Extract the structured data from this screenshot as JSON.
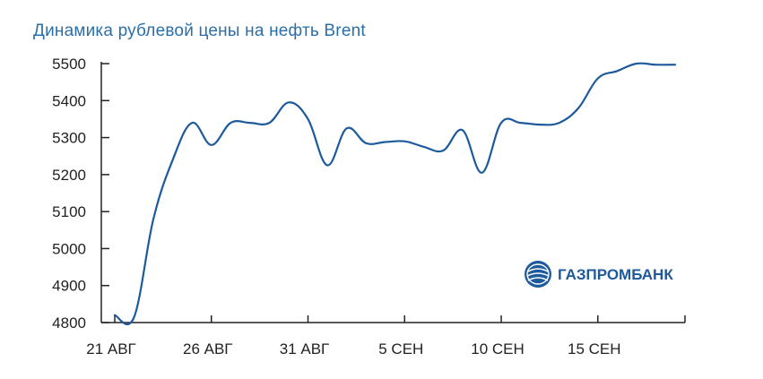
{
  "chart_data": {
    "type": "line",
    "title": "Динамика рублевой цены на нефть Brent",
    "xlabel": "",
    "ylabel": "",
    "ylim": [
      4800,
      5500
    ],
    "yticks": [
      4800,
      4900,
      5000,
      5100,
      5200,
      5300,
      5400,
      5500
    ],
    "x_range": [
      "2015-08-21",
      "2015-09-19"
    ],
    "xtick_dates": [
      "2015-08-21",
      "2015-08-26",
      "2015-08-31",
      "2015-09-05",
      "2015-09-10",
      "2015-09-15"
    ],
    "xtick_labels": [
      "21 АВГ",
      "26 АВГ",
      "31 АВГ",
      "5 СЕН",
      "10 СЕН",
      "15 СЕН"
    ],
    "grid": false,
    "legend": "none",
    "color": "#1d5a9c",
    "series": [
      {
        "x": [
          "2015-08-21",
          "2015-08-22",
          "2015-08-23",
          "2015-08-24",
          "2015-08-25",
          "2015-08-26",
          "2015-08-27",
          "2015-08-28",
          "2015-08-29",
          "2015-08-30",
          "2015-08-31",
          "2015-09-01",
          "2015-09-02",
          "2015-09-03",
          "2015-09-04",
          "2015-09-05",
          "2015-09-06",
          "2015-09-07",
          "2015-09-08",
          "2015-09-09",
          "2015-09-10",
          "2015-09-11",
          "2015-09-12",
          "2015-09-13",
          "2015-09-14",
          "2015-09-15",
          "2015-09-16",
          "2015-09-17",
          "2015-09-18",
          "2015-09-19"
        ],
        "values": [
          4820,
          4815,
          5080,
          5240,
          5340,
          5280,
          5340,
          5340,
          5340,
          5395,
          5350,
          5225,
          5325,
          5285,
          5288,
          5290,
          5275,
          5265,
          5320,
          5205,
          5340,
          5340,
          5335,
          5340,
          5380,
          5460,
          5480,
          5500,
          5497,
          5497
        ]
      }
    ]
  },
  "logo": {
    "text": "ГАЗПРОМБАНК",
    "icon": "gazprombank-globe-icon",
    "colors": [
      "#1d5a9c",
      "#3a86c8"
    ]
  }
}
